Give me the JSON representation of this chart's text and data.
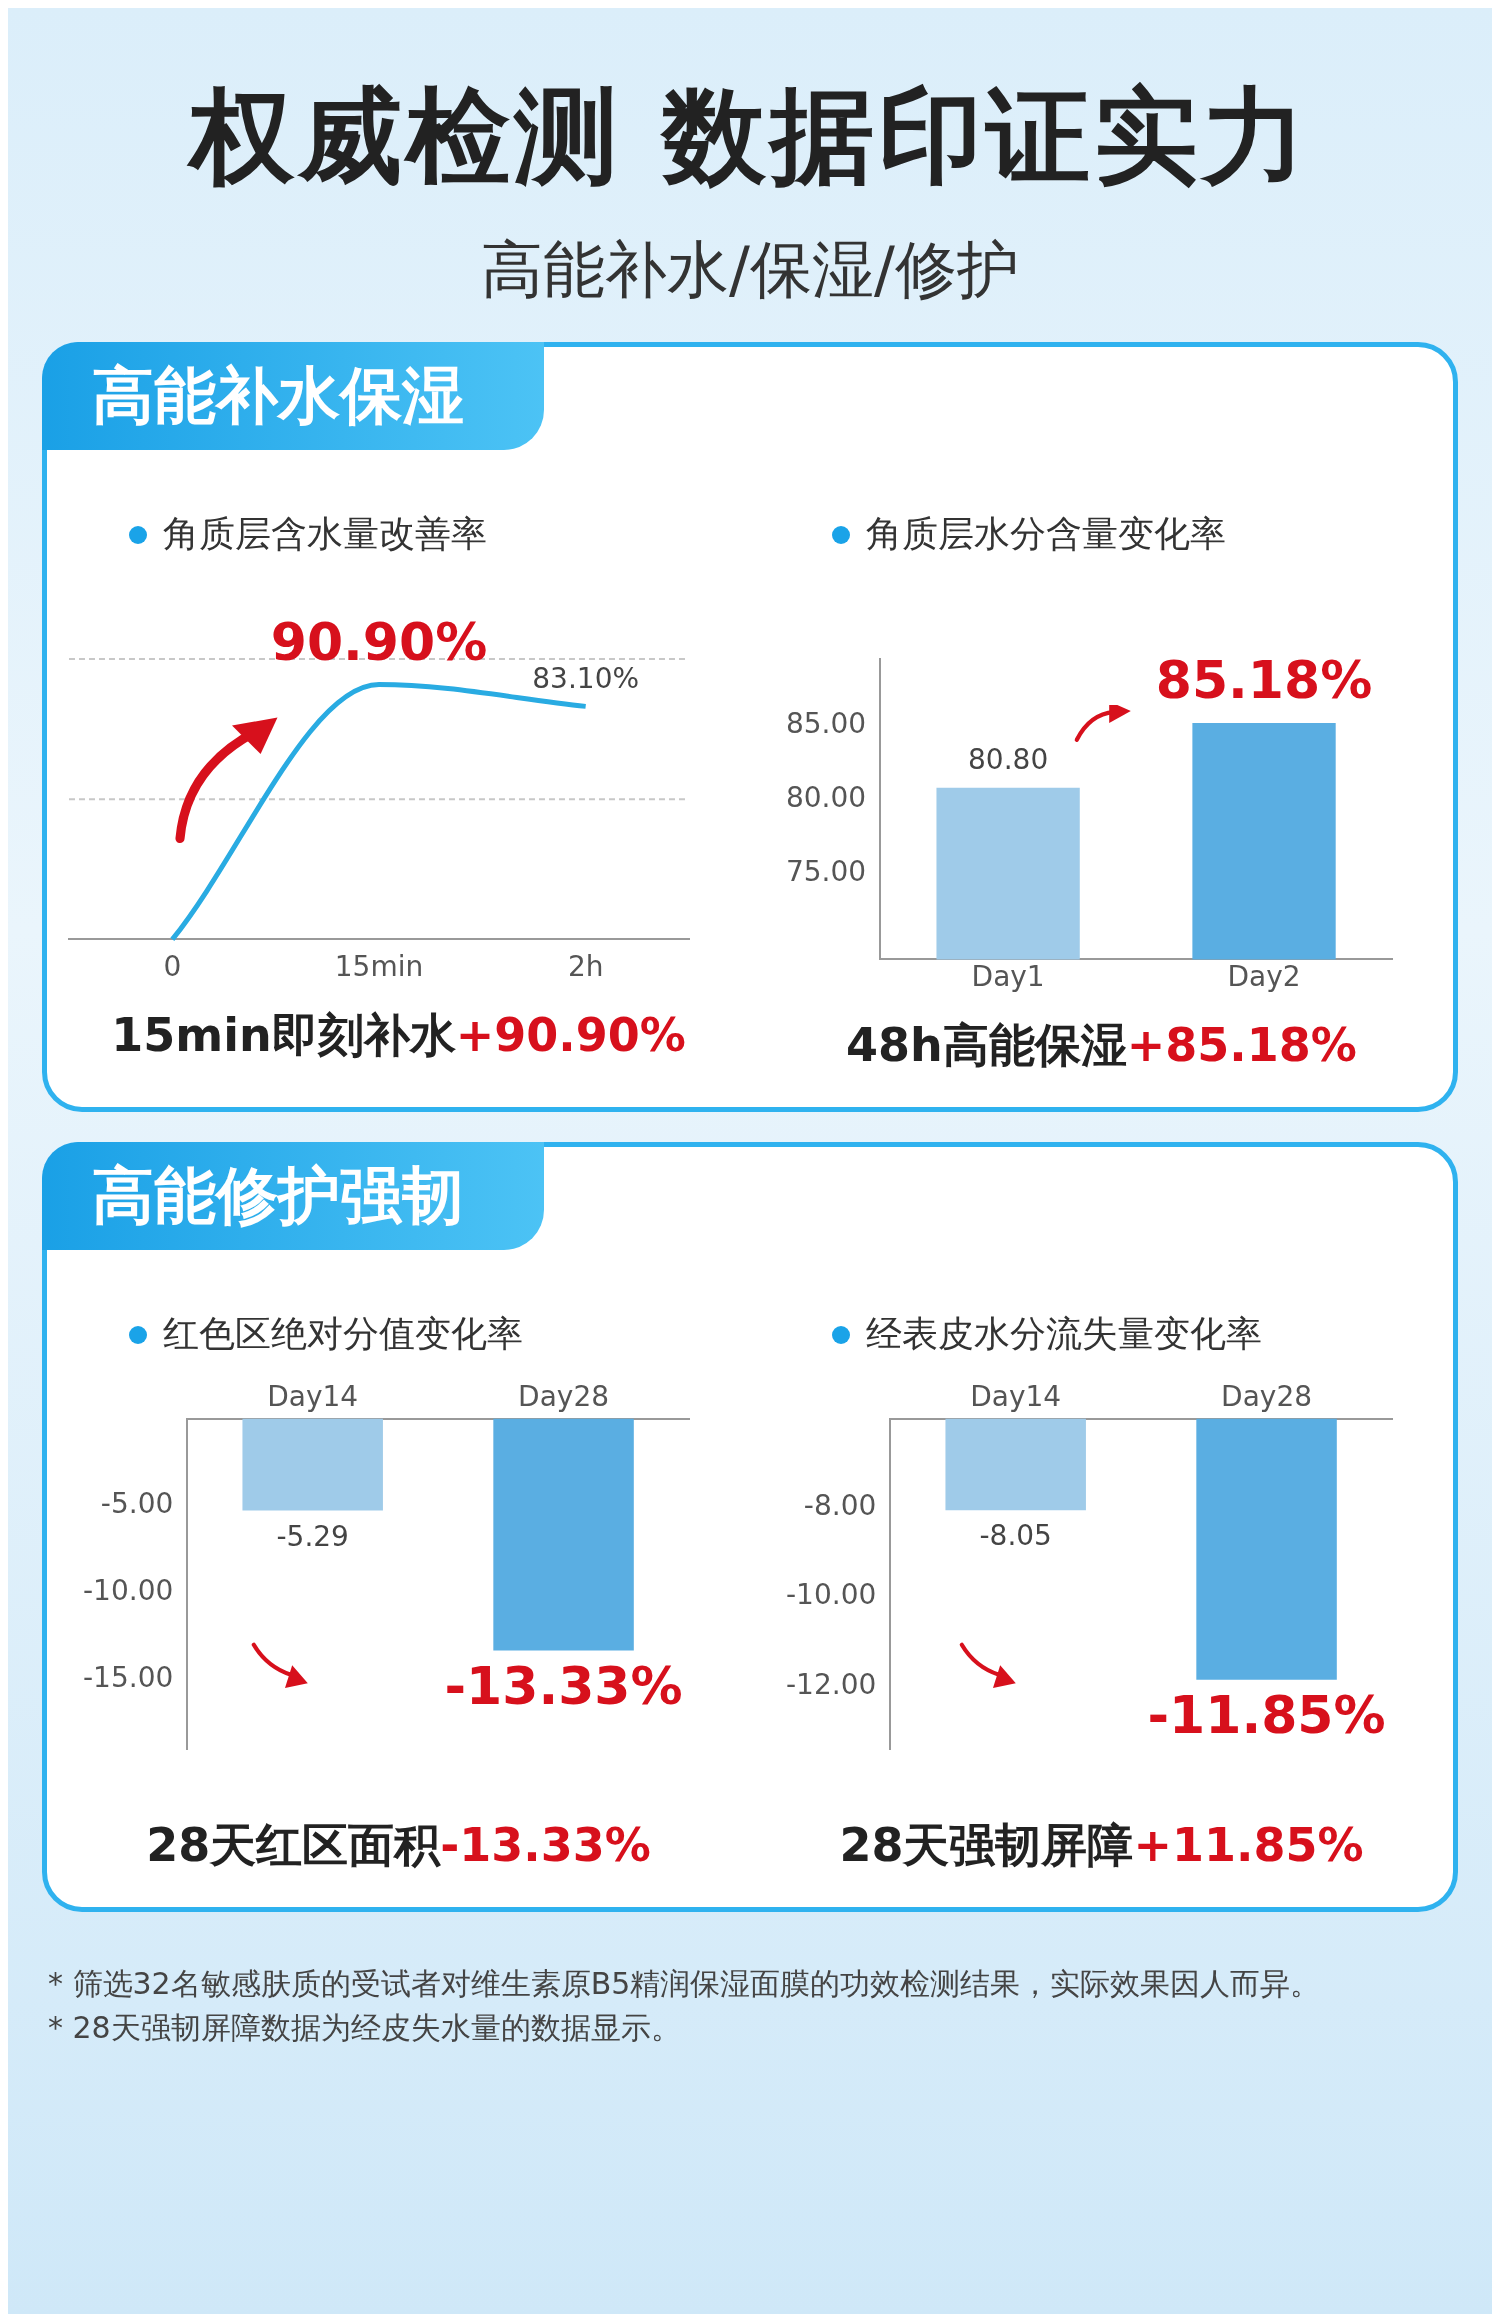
{
  "chart_data": [
    {
      "type": "other",
      "title": "权威检测 数据印证实力",
      "subtitle": "高能补水/保湿/修护"
    },
    {
      "type": "other",
      "title": "高能补水保湿"
    },
    {
      "type": "line",
      "title": "角质层含水量改善率",
      "categories": [
        "0",
        "15min",
        "2h"
      ],
      "values": [
        0,
        90.9,
        83.1
      ],
      "color": "#29abe2",
      "value_labels": [
        null,
        "90.90%",
        "83.10%"
      ],
      "ref_lines": [
        {
          "axis": "y",
          "value": 50,
          "color": "#c8c8c8",
          "line_style": "dashed"
        },
        {
          "axis": "y",
          "value": 100,
          "color": "#c8c8c8",
          "line_style": "dashed"
        }
      ],
      "tick_labels": "x",
      "annotations": [
        "15min即刻补水+90.90%"
      ]
    },
    {
      "type": "bar",
      "title": "角质层水分含量变化率",
      "categories": [
        "Day1",
        "Day2"
      ],
      "values": [
        80.8,
        85.18
      ],
      "colors": [
        "#9fcbe9",
        "#5aaee2"
      ],
      "value_labels": [
        "80.80",
        "85.18%"
      ],
      "ylim": [
        69.2,
        89.5
      ],
      "yticks": [
        {
          "value": 75,
          "label": "75.00"
        },
        {
          "value": 80,
          "label": "80.00"
        },
        {
          "value": 85,
          "label": "85.00"
        }
      ],
      "annotations": [
        "48h高能保湿+85.18%"
      ]
    },
    {
      "type": "other",
      "title": "高能修护强韧"
    },
    {
      "type": "bar",
      "title": "红色区绝对分值变化率",
      "categories": [
        "Day14",
        "Day28"
      ],
      "values": [
        -5.29,
        -13.33
      ],
      "colors": [
        "#9fcbe9",
        "#5aaee2"
      ],
      "value_labels": [
        "-5.29",
        "-13.33%"
      ],
      "ylim": [
        -19,
        0
      ],
      "yticks": [
        {
          "value": -5,
          "label": "-5.00"
        },
        {
          "value": -10,
          "label": "-10.00"
        },
        {
          "value": -15,
          "label": "-15.00"
        }
      ],
      "annotations": [
        "28天红区面积-13.33%"
      ]
    },
    {
      "type": "bar",
      "title": "经表皮水分流失量变化率",
      "categories": [
        "Day14",
        "Day28"
      ],
      "values": [
        -8.05,
        -11.85
      ],
      "colors": [
        "#9fcbe9",
        "#5aaee2"
      ],
      "value_labels": [
        "-8.05",
        "-11.85%"
      ],
      "ylim": [
        -13.4,
        -6
      ],
      "yticks": [
        {
          "value": -8,
          "label": "-8.00"
        },
        {
          "value": -10,
          "label": "-10.00"
        },
        {
          "value": -12,
          "label": "-12.00"
        }
      ],
      "annotations": [
        "28天强韧屏障+11.85%"
      ]
    },
    {
      "type": "other",
      "annotations": [
        "* 筛选32名敏感肤质的受试者对维生素原B5精润保湿面膜的功效检测结果，实际效果因人而异。",
        "* 28天强韧屏障数据为经皮失水量的数据显示。"
      ]
    }
  ]
}
